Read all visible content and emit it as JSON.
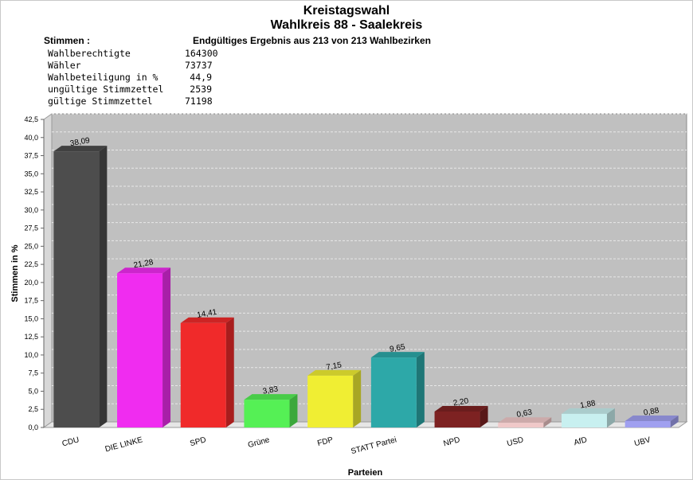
{
  "header": {
    "title_line1": "Kreistagswahl",
    "title_line2": "Wahlkreis 88 - Saalekreis",
    "stimmen_label": "Stimmen  :",
    "result_note": "Endgültiges Ergebnis aus 213 von 213 Wahlbezirken"
  },
  "stats": [
    {
      "label": "Wahlberechtigte",
      "value": "164300"
    },
    {
      "label": "Wähler",
      "value": "73737"
    },
    {
      "label": "Wahlbeteiligung in %",
      "value": "44,9"
    },
    {
      "label": "ungültige Stimmzettel",
      "value": "2539"
    },
    {
      "label": "gültige Stimmzettel",
      "value": "71198"
    }
  ],
  "chart_data": {
    "type": "bar",
    "title": "",
    "xlabel": "Parteien",
    "ylabel": "Stimmen in %",
    "ylim": [
      0,
      42.5
    ],
    "yticks": [
      "0,0",
      "2,5",
      "5,0",
      "7,5",
      "10,0",
      "12,5",
      "15,0",
      "17,5",
      "20,0",
      "22,5",
      "25,0",
      "27,5",
      "30,0",
      "32,5",
      "35,0",
      "37,5",
      "40,0",
      "42,5"
    ],
    "categories": [
      "CDU",
      "DIE LINKE",
      "SPD",
      "Grüne",
      "FDP",
      "STATT Partei",
      "NPD",
      "USD",
      "AfD",
      "UBV"
    ],
    "values": [
      38.09,
      21.28,
      14.41,
      3.83,
      7.15,
      9.65,
      2.2,
      0.63,
      1.88,
      0.88
    ],
    "value_labels": [
      "38,09",
      "21,28",
      "14,41",
      "3,83",
      "7,15",
      "9,65",
      "2,20",
      "0,63",
      "1,88",
      "0,88"
    ],
    "colors": [
      "#4d4d4d",
      "#f02cf0",
      "#f02a2a",
      "#55f055",
      "#f0ee33",
      "#2da8a8",
      "#7d2222",
      "#f0c8c8",
      "#c8f0f0",
      "#a0a0f0"
    ],
    "grid": true,
    "legend": "none"
  }
}
